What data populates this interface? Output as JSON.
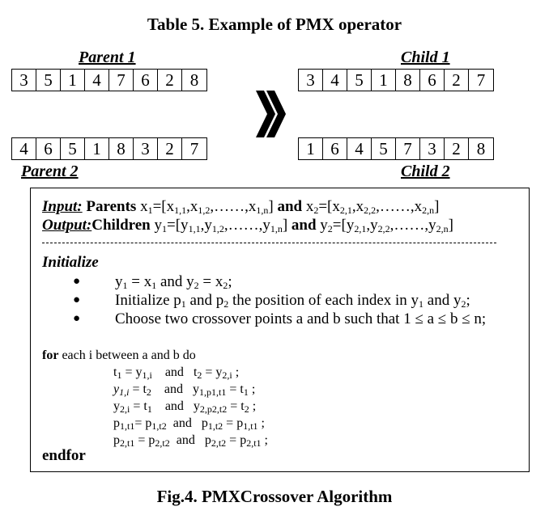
{
  "table_title": "Table 5. Example of PMX operator",
  "parent1": {
    "label": "Parent 1",
    "values": [
      "3",
      "5",
      "1",
      "4",
      "7",
      "6",
      "2",
      "8"
    ]
  },
  "parent2": {
    "label": "Parent 2",
    "values": [
      "4",
      "6",
      "5",
      "1",
      "8",
      "3",
      "2",
      "7"
    ]
  },
  "child1": {
    "label": "Child 1",
    "values": [
      "3",
      "4",
      "5",
      "1",
      "8",
      "6",
      "2",
      "7"
    ]
  },
  "child2": {
    "label": "Child 2",
    "values": [
      "1",
      "6",
      "4",
      "5",
      "7",
      "3",
      "2",
      "8"
    ]
  },
  "arrow_icon": "double-chevron-right-icon",
  "algorithm": {
    "input_label": "Input:",
    "input_parents_word": "Parents",
    "output_label": "Output:",
    "output_children_word": "Children",
    "and_word": "and",
    "initialize": "Initialize",
    "bullet_init_vars": "Initialize",
    "bullet_position_text": "the position of each index in",
    "bullet_choose_text": "Choose two crossover points a and b such that 1 ≤ a ≤ b ≤ n;",
    "for_keyword": "for",
    "for_text": "each i between a and b do",
    "endfor": "endfor"
  },
  "fig_caption": "Fig.4. PMXCrossover Algorithm"
}
